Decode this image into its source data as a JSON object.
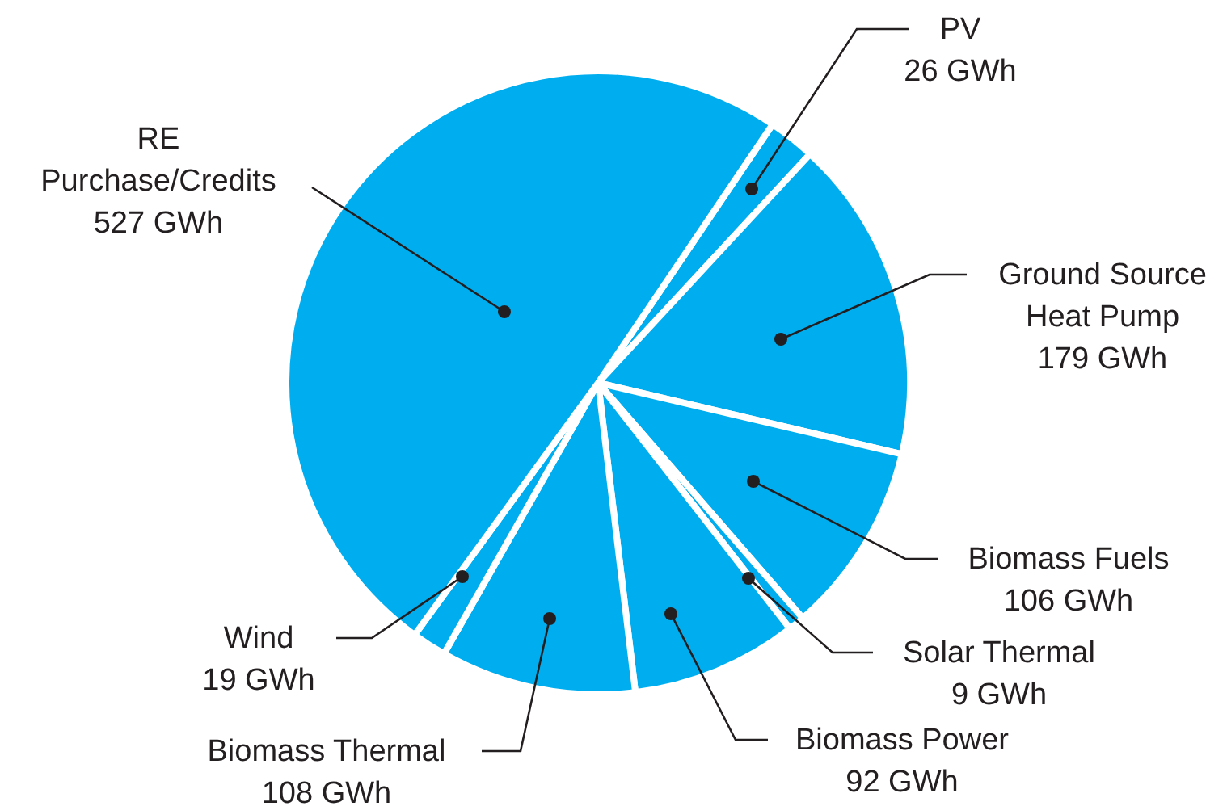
{
  "chart_data": {
    "type": "pie",
    "categories": [
      "PV",
      "Ground Source Heat Pump",
      "Biomass Fuels",
      "Solar Thermal",
      "Biomass Power",
      "Biomass Thermal",
      "Wind",
      "RE Purchase/Credits"
    ],
    "values": [
      26,
      179,
      106,
      9,
      92,
      108,
      19,
      527
    ],
    "value_labels": [
      "26 GWh",
      "179 GWh",
      "106 GWh",
      "9 GWh",
      "92 GWh",
      "108 GWh",
      "19 GWh",
      "527 GWh"
    ],
    "colors": [
      "#00aeef",
      "#00aeef",
      "#00aeef",
      "#00aeef",
      "#00aeef",
      "#00aeef",
      "#00aeef",
      "#00aeef"
    ]
  }
}
